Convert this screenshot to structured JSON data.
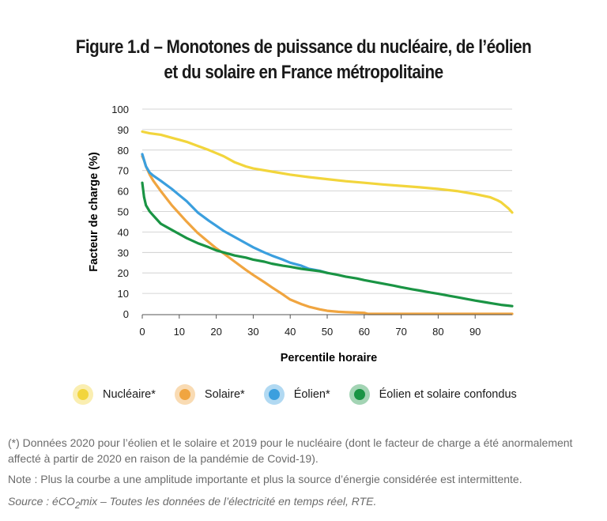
{
  "figure": {
    "title_line1": "Figure 1.d – Monotones de puissance du nucléaire, de l’éolien",
    "title_line2": "et du solaire en France métropolitaine"
  },
  "chart_data": {
    "type": "line",
    "xlabel": "Percentile horaire",
    "ylabel": "Facteur de charge (%)",
    "xlim": [
      0,
      100
    ],
    "ylim": [
      0,
      100
    ],
    "x_ticks": [
      0,
      10,
      20,
      30,
      40,
      50,
      60,
      70,
      80,
      90
    ],
    "y_ticks": [
      0,
      10,
      20,
      30,
      40,
      50,
      60,
      70,
      80,
      90,
      100
    ],
    "grid": "horizontal",
    "legend_position": "bottom",
    "series": [
      {
        "name": "Nucléaire*",
        "color": "#f2d53c",
        "x": [
          0,
          2,
          5,
          8,
          10,
          12,
          15,
          18,
          20,
          22,
          25,
          28,
          30,
          35,
          40,
          45,
          50,
          55,
          60,
          65,
          70,
          75,
          80,
          85,
          90,
          94,
          96,
          97,
          98,
          99,
          100
        ],
        "y": [
          89,
          88.2,
          87.5,
          86,
          85,
          84,
          82,
          80,
          78.5,
          77,
          74,
          72,
          71,
          69.5,
          68,
          66.8,
          65.8,
          64.8,
          64,
          63.2,
          62.5,
          61.8,
          61,
          60,
          58.5,
          57,
          55.5,
          54.5,
          53,
          51.5,
          49.5
        ]
      },
      {
        "name": "Solaire*",
        "color": "#f0a540",
        "x": [
          0,
          0.5,
          1,
          2,
          3,
          5,
          8,
          10,
          12,
          15,
          18,
          20,
          22,
          25,
          28,
          30,
          33,
          35,
          38,
          40,
          43,
          45,
          48,
          50,
          53,
          55,
          58,
          60,
          61,
          65,
          70,
          80,
          90,
          100
        ],
        "y": [
          77,
          75,
          72,
          68,
          65,
          60,
          53,
          49,
          45,
          39.5,
          35,
          32,
          29.5,
          25.5,
          21.5,
          19,
          15.5,
          13,
          9.5,
          7,
          4.8,
          3.5,
          2.2,
          1.5,
          1,
          0.8,
          0.6,
          0.5,
          0,
          0,
          0,
          0,
          0,
          0
        ]
      },
      {
        "name": "Éolien*",
        "color": "#3b9fde",
        "x": [
          0,
          1,
          2,
          3,
          5,
          8,
          10,
          12,
          15,
          18,
          20,
          22,
          25,
          28,
          30,
          33,
          35,
          38,
          40,
          43,
          45,
          48,
          50
        ],
        "y": [
          78,
          72,
          69,
          67.5,
          65,
          61,
          58,
          55,
          49.5,
          45.5,
          43,
          40.5,
          37.5,
          34.5,
          32.5,
          30,
          28.5,
          26.5,
          25,
          23.5,
          22,
          21,
          20
        ]
      },
      {
        "name": "Éolien et solaire confondus",
        "color": "#1a9444",
        "x": [
          0,
          0.5,
          1,
          2,
          3,
          5,
          8,
          10,
          12,
          15,
          18,
          20,
          22,
          25,
          28,
          30,
          33,
          35,
          38,
          40,
          43,
          45,
          48,
          50,
          53,
          55,
          58,
          60,
          63,
          65,
          68,
          70,
          73,
          75,
          78,
          80,
          83,
          85,
          88,
          90,
          93,
          95,
          97,
          98,
          99,
          100
        ],
        "y": [
          64,
          57,
          53,
          50,
          48,
          44,
          41,
          39,
          37,
          34.5,
          32.5,
          31,
          30,
          28.5,
          27.5,
          26.5,
          25.5,
          24.5,
          23.5,
          23,
          22,
          21.5,
          20.8,
          20,
          19,
          18.2,
          17.3,
          16.5,
          15.5,
          14.8,
          13.8,
          13,
          12,
          11.4,
          10.4,
          9.8,
          8.8,
          8.2,
          7.2,
          6.5,
          5.6,
          5,
          4.4,
          4.2,
          4,
          3.8
        ]
      }
    ]
  },
  "notes": {
    "note1": "(*) Données 2020 pour l’éolien et le solaire et 2019 pour le nucléaire (dont le facteur de charge a été anormalement affecté à partir de 2020 en raison de la pandémie de Covid-19).",
    "note2": "Note : Plus la courbe a une amplitude importante et plus la source d’énergie considérée est intermittente.",
    "source_a": "Source : éCO",
    "source_sub": "2",
    "source_b": "mix – Toutes les données de l’électricité en temps réel, RTE."
  }
}
